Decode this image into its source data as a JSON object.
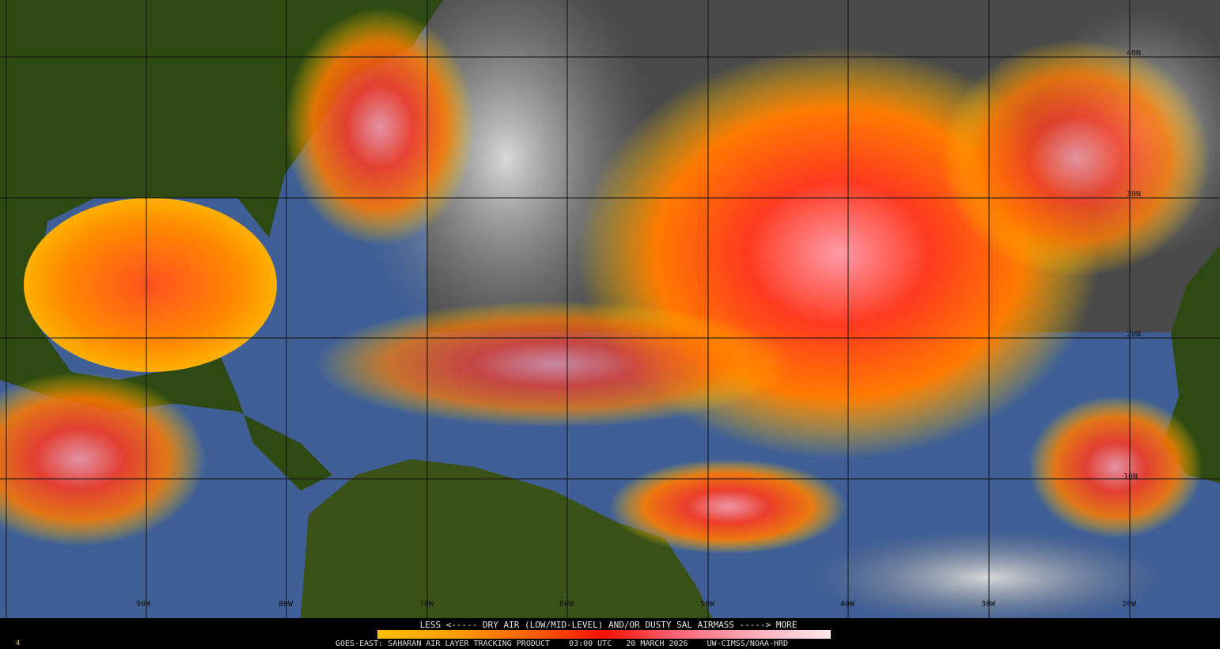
{
  "map": {
    "product": "GOES-EAST: SAHARAN AIR LAYER TRACKING PRODUCT",
    "time": "03:00 UTC",
    "date": "20 MARCH 2026",
    "credit": "UW-CIMSS/NOAA-HRD",
    "frame_marker": "4",
    "legend": {
      "label": "LESS <----- DRY AIR (LOW/MID-LEVEL) AND/OR DUSTY SAL AIRMASS -----> MORE",
      "colors": [
        "#ffc000",
        "#ff9a00",
        "#ff5a00",
        "#ff1000",
        "#ff6070",
        "#ffa0b0",
        "#ffe8ec"
      ]
    },
    "longitude_labels": [
      "90W",
      "80W",
      "70W",
      "60W",
      "50W",
      "40W",
      "30W",
      "20W"
    ],
    "latitude_labels": [
      "40N",
      "30N",
      "20N",
      "10N"
    ],
    "colors": {
      "ocean": "#3f5f96",
      "land": "#2e4a12",
      "cloud": "#b8b8b8",
      "dry_air": "#ff2a10"
    }
  }
}
